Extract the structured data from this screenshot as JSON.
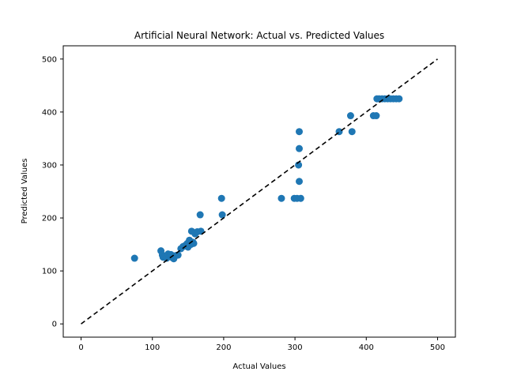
{
  "chart_data": {
    "type": "scatter",
    "title": "Artificial Neural Network: Actual vs. Predicted Values",
    "xlabel": "Actual Values",
    "ylabel": "Predicted Values",
    "xlim": [
      -25,
      525
    ],
    "ylim": [
      -25,
      525
    ],
    "xticks": [
      0,
      100,
      200,
      300,
      400,
      500
    ],
    "yticks": [
      0,
      100,
      200,
      300,
      400,
      500
    ],
    "grid": false,
    "colors": {
      "points": "#1f77b4",
      "reference_line": "#000000"
    },
    "reference_line": {
      "style": "dashed",
      "from": [
        0,
        0
      ],
      "to": [
        500,
        500
      ]
    },
    "series": [
      {
        "points": [
          [
            75,
            124
          ],
          [
            112,
            138
          ],
          [
            114,
            130
          ],
          [
            115,
            126
          ],
          [
            118,
            128
          ],
          [
            120,
            124
          ],
          [
            122,
            132
          ],
          [
            124,
            127
          ],
          [
            126,
            131
          ],
          [
            128,
            125
          ],
          [
            130,
            123
          ],
          [
            133,
            129
          ],
          [
            136,
            130
          ],
          [
            140,
            142
          ],
          [
            143,
            146
          ],
          [
            146,
            148
          ],
          [
            149,
            152
          ],
          [
            150,
            145
          ],
          [
            152,
            158
          ],
          [
            154,
            150
          ],
          [
            155,
            175
          ],
          [
            157,
            154
          ],
          [
            158,
            152
          ],
          [
            160,
            170
          ],
          [
            163,
            174
          ],
          [
            167,
            206
          ],
          [
            168,
            175
          ],
          [
            197,
            237
          ],
          [
            198,
            206
          ],
          [
            281,
            237
          ],
          [
            299,
            237
          ],
          [
            303,
            237
          ],
          [
            305,
            300
          ],
          [
            306,
            269
          ],
          [
            306,
            331
          ],
          [
            306,
            363
          ],
          [
            308,
            237
          ],
          [
            362,
            363
          ],
          [
            378,
            393
          ],
          [
            380,
            363
          ],
          [
            410,
            393
          ],
          [
            414,
            393
          ],
          [
            415,
            425
          ],
          [
            418,
            425
          ],
          [
            422,
            425
          ],
          [
            426,
            425
          ],
          [
            430,
            425
          ],
          [
            434,
            425
          ],
          [
            438,
            425
          ],
          [
            442,
            425
          ],
          [
            446,
            425
          ]
        ]
      }
    ]
  }
}
